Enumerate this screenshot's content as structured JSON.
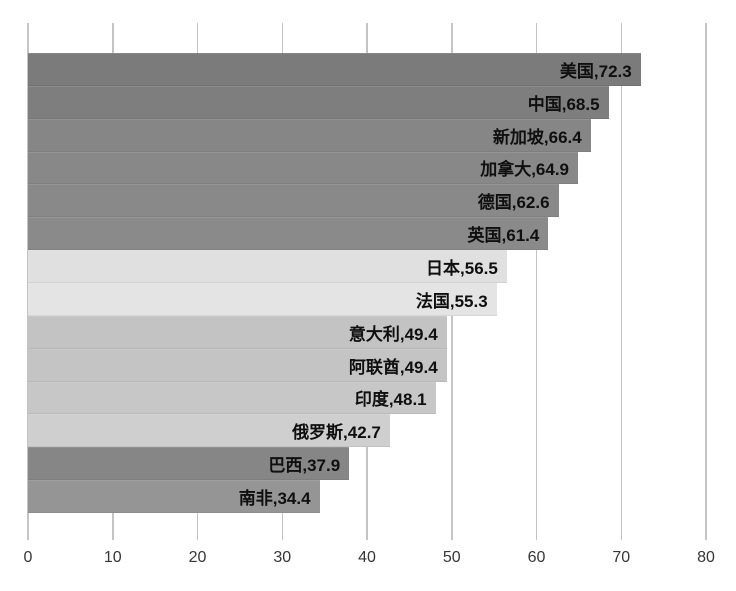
{
  "chart_data": {
    "type": "bar",
    "orientation": "horizontal",
    "title": "",
    "categories": [
      "美国",
      "中国",
      "新加坡",
      "加拿大",
      "德国",
      "英国",
      "日本",
      "法国",
      "意大利",
      "阿联酋",
      "印度",
      "俄罗斯",
      "巴西",
      "南非"
    ],
    "values": [
      72.3,
      68.5,
      66.4,
      64.9,
      62.6,
      61.4,
      56.5,
      55.3,
      49.4,
      49.4,
      48.1,
      42.7,
      37.9,
      34.4
    ],
    "labels": [
      "美国,72.3",
      "中国,68.5",
      "新加坡,66.4",
      "加拿大,64.9",
      "德国,62.6",
      "英国,61.4",
      "日本,56.5",
      "法国,55.3",
      "意大利,49.4",
      "阿联酋,49.4",
      "印度,48.1",
      "俄罗斯,42.7",
      "巴西,37.9",
      "南非,34.4"
    ],
    "bar_colors": [
      "#7b7b7b",
      "#7e7e7e",
      "#868686",
      "#888888",
      "#898989",
      "#8a8a8a",
      "#e0e0e0",
      "#e4e4e4",
      "#c3c3c3",
      "#c4c4c4",
      "#c7c7c7",
      "#cfcfcf",
      "#868686",
      "#959595"
    ],
    "x_ticks": [
      "0",
      "10",
      "20",
      "30",
      "40",
      "50",
      "60",
      "70",
      "80"
    ],
    "xlim": [
      0,
      80
    ],
    "grid": true,
    "gridline_color": "#c4c4c4",
    "label_text_color": "#0f0f0f",
    "tick_text_color": "#363636",
    "background": "#ffffff",
    "legend": "none",
    "xlabel": "",
    "ylabel": ""
  }
}
